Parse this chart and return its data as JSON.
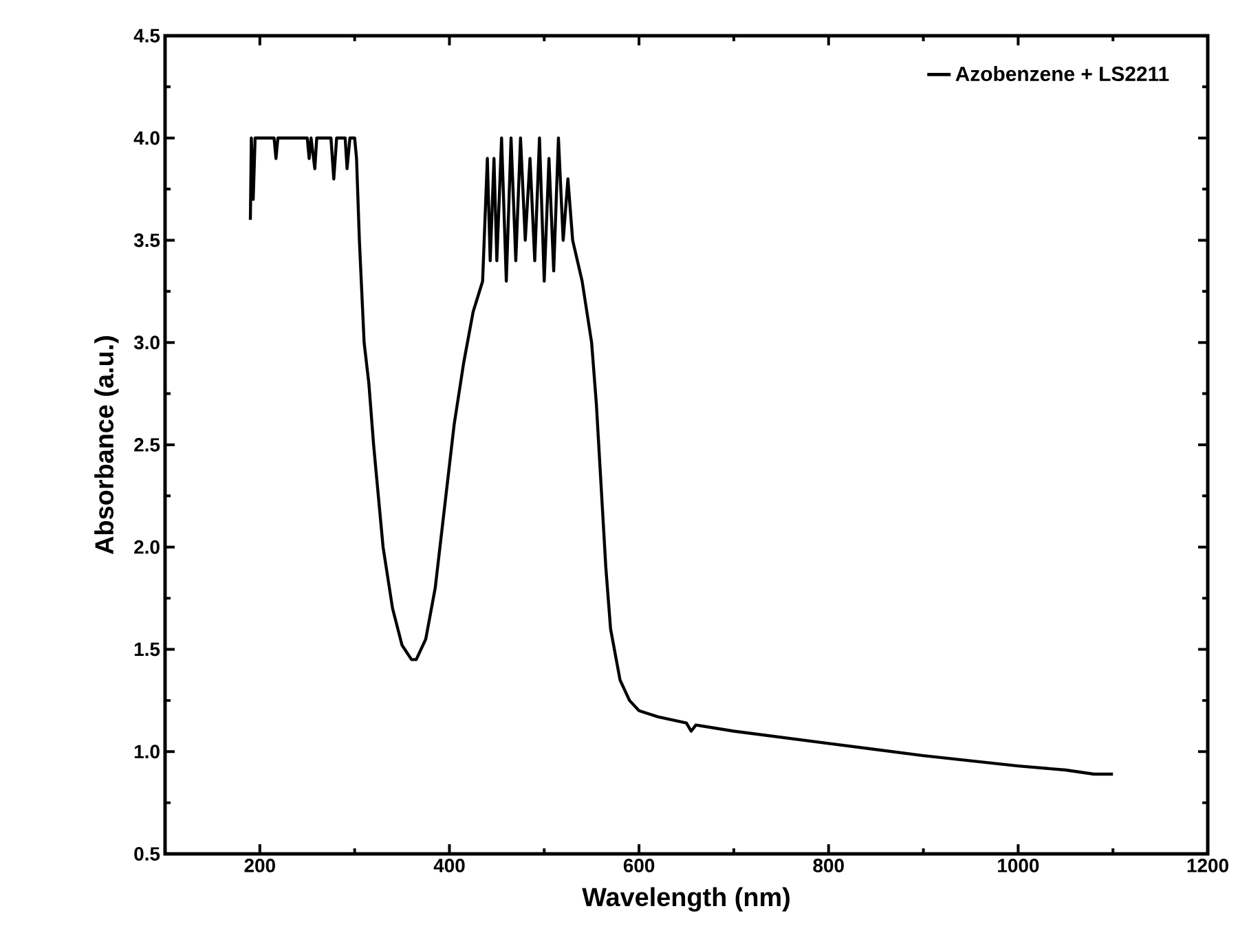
{
  "chart_data": {
    "type": "line",
    "xlabel": "Wavelength (nm)",
    "ylabel": "Absorbance (a.u.)",
    "xlim": [
      100,
      1200
    ],
    "ylim": [
      0.5,
      4.5
    ],
    "xticks": [
      200,
      400,
      600,
      800,
      1000,
      1200
    ],
    "yticks": [
      {
        "value": 0.5,
        "label": "0.5"
      },
      {
        "value": 1.0,
        "label": "1.0"
      },
      {
        "value": 1.5,
        "label": "1.5"
      },
      {
        "value": 2.0,
        "label": "2.0"
      },
      {
        "value": 2.5,
        "label": "2.5"
      },
      {
        "value": 3.0,
        "label": "3.0"
      },
      {
        "value": 3.5,
        "label": "3.5"
      },
      {
        "value": 4.0,
        "label": "4.0"
      },
      {
        "value": 4.5,
        "label": "4.5"
      }
    ],
    "grid": false,
    "legend": "top right",
    "marker": "none",
    "line_style": "solid",
    "series": [
      {
        "name": "Azobenzene + LS2211",
        "color": "#000000",
        "x": [
          190,
          191,
          193,
          195,
          200,
          215,
          217,
          219,
          250,
          252,
          254,
          258,
          260,
          275,
          278,
          281,
          290,
          292,
          295,
          300,
          302,
          305,
          310,
          315,
          320,
          330,
          340,
          350,
          360,
          365,
          375,
          385,
          395,
          405,
          415,
          425,
          435,
          440,
          443,
          447,
          450,
          455,
          460,
          465,
          470,
          475,
          480,
          485,
          490,
          495,
          500,
          505,
          510,
          515,
          520,
          525,
          530,
          540,
          550,
          555,
          560,
          565,
          570,
          580,
          590,
          600,
          620,
          650,
          655,
          660,
          700,
          800,
          900,
          1000,
          1050,
          1080,
          1100
        ],
        "values": [
          3.6,
          4.0,
          3.7,
          4.0,
          4.0,
          4.0,
          3.9,
          4.0,
          4.0,
          3.9,
          4.0,
          3.85,
          4.0,
          4.0,
          3.8,
          4.0,
          4.0,
          3.85,
          4.0,
          4.0,
          3.9,
          3.5,
          3.0,
          2.8,
          2.5,
          2.0,
          1.7,
          1.52,
          1.45,
          1.45,
          1.55,
          1.8,
          2.2,
          2.6,
          2.9,
          3.15,
          3.3,
          3.9,
          3.4,
          3.9,
          3.4,
          4.0,
          3.3,
          4.0,
          3.4,
          4.0,
          3.5,
          3.9,
          3.4,
          4.0,
          3.3,
          3.9,
          3.35,
          4.0,
          3.5,
          3.8,
          3.5,
          3.3,
          3.0,
          2.7,
          2.3,
          1.9,
          1.6,
          1.35,
          1.25,
          1.2,
          1.17,
          1.14,
          1.1,
          1.13,
          1.1,
          1.04,
          0.98,
          0.93,
          0.91,
          0.89,
          0.89
        ]
      }
    ]
  }
}
